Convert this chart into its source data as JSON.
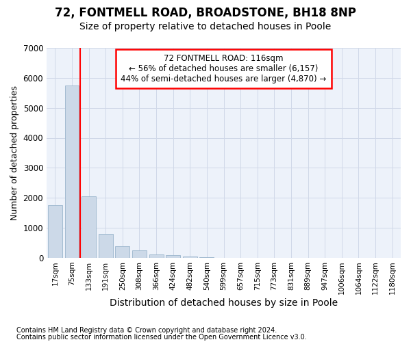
{
  "title": "72, FONTMELL ROAD, BROADSTONE, BH18 8NP",
  "subtitle": "Size of property relative to detached houses in Poole",
  "xlabel": "Distribution of detached houses by size in Poole",
  "ylabel": "Number of detached properties",
  "categories": [
    "17sqm",
    "75sqm",
    "133sqm",
    "191sqm",
    "250sqm",
    "308sqm",
    "366sqm",
    "424sqm",
    "482sqm",
    "540sqm",
    "599sqm",
    "657sqm",
    "715sqm",
    "773sqm",
    "831sqm",
    "889sqm",
    "947sqm",
    "1006sqm",
    "1064sqm",
    "1122sqm",
    "1180sqm"
  ],
  "values": [
    1750,
    5750,
    2050,
    800,
    380,
    240,
    120,
    80,
    50,
    20,
    5,
    0,
    5,
    0,
    0,
    0,
    0,
    0,
    0,
    0,
    0
  ],
  "bar_color": "#ccd9e8",
  "bar_edge_color": "#9ab5cc",
  "red_line_x": 1.5,
  "property_label": "72 FONTMELL ROAD: 116sqm",
  "annotation_line1": "← 56% of detached houses are smaller (6,157)",
  "annotation_line2": "44% of semi-detached houses are larger (4,870) →",
  "footnote1": "Contains HM Land Registry data © Crown copyright and database right 2024.",
  "footnote2": "Contains public sector information licensed under the Open Government Licence v3.0.",
  "ylim": [
    0,
    7000
  ],
  "yticks": [
    0,
    1000,
    2000,
    3000,
    4000,
    5000,
    6000,
    7000
  ],
  "grid_color": "#d0d8e8",
  "bg_color": "#edf2fa",
  "title_fontsize": 12,
  "subtitle_fontsize": 10,
  "ylabel_fontsize": 9,
  "xlabel_fontsize": 10
}
